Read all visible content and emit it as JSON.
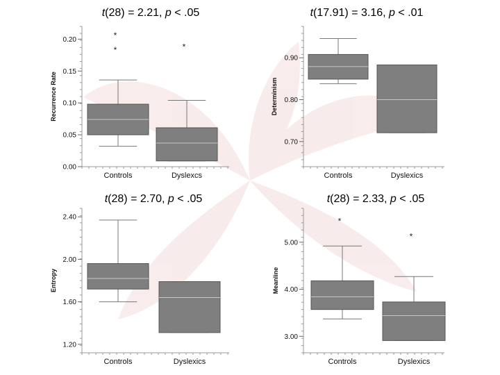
{
  "chart_data": [
    {
      "type": "boxplot",
      "title": {
        "t": "t",
        "rest1": "(28) = 2.21, ",
        "p": "p",
        "rest2": " < .05"
      },
      "ylabel": "Recurrence Rate",
      "ylim": [
        0.0,
        0.22
      ],
      "yticks": [
        "0.00",
        "0.05",
        "0.10",
        "0.15",
        "0.20"
      ],
      "ytick_values": [
        0.0,
        0.05,
        0.1,
        0.15,
        0.2
      ],
      "categories": [
        "Controls",
        "Dyslexcs"
      ],
      "boxes": [
        {
          "min": 0.032,
          "q1": 0.05,
          "median": 0.074,
          "q3": 0.098,
          "max": 0.136,
          "outliers": [
            0.185,
            0.208
          ]
        },
        {
          "min": 0.009,
          "q1": 0.009,
          "median": 0.037,
          "q3": 0.061,
          "max": 0.104,
          "outliers": [
            0.19
          ]
        }
      ]
    },
    {
      "type": "boxplot",
      "title": {
        "t": "t",
        "rest1": "(17.91) = 3.16, ",
        "p": "p",
        "rest2": " < .01"
      },
      "ylabel": "Determinism",
      "ylim": [
        0.64,
        0.975
      ],
      "yticks": [
        "0.70",
        "0.80",
        "0.90"
      ],
      "ytick_values": [
        0.7,
        0.8,
        0.9
      ],
      "categories": [
        "Controls",
        "Dyslexics"
      ],
      "boxes": [
        {
          "min": 0.838,
          "q1": 0.849,
          "median": 0.879,
          "q3": 0.908,
          "max": 0.946,
          "outliers": []
        },
        {
          "min": 0.721,
          "q1": 0.721,
          "median": 0.8,
          "q3": 0.883,
          "max": 0.883,
          "outliers": []
        }
      ]
    },
    {
      "type": "boxplot",
      "title": {
        "t": "t",
        "rest1": "(28) = 2.70, ",
        "p": "p",
        "rest2": " < .05"
      },
      "ylabel": "Entropy",
      "ylim": [
        1.12,
        2.48
      ],
      "yticks": [
        "1.20",
        "1.60",
        "2.00",
        "2.40"
      ],
      "ytick_values": [
        1.2,
        1.6,
        2.0,
        2.4
      ],
      "categories": [
        "Controls",
        "Dyslexics"
      ],
      "boxes": [
        {
          "min": 1.6,
          "q1": 1.72,
          "median": 1.82,
          "q3": 1.96,
          "max": 2.37,
          "outliers": []
        },
        {
          "min": 1.31,
          "q1": 1.31,
          "median": 1.64,
          "q3": 1.79,
          "max": 1.79,
          "outliers": []
        }
      ]
    },
    {
      "type": "boxplot",
      "title": {
        "t": "t",
        "rest1": "(28) = 2.33, ",
        "p": "p",
        "rest2": " < .05"
      },
      "ylabel": "Meanline",
      "ylim": [
        2.65,
        5.72
      ],
      "yticks": [
        "3.00",
        "4.00",
        "5.00"
      ],
      "ytick_values": [
        3.0,
        4.0,
        5.0
      ],
      "categories": [
        "Controls",
        "Dyslexics"
      ],
      "boxes": [
        {
          "min": 3.37,
          "q1": 3.57,
          "median": 3.84,
          "q3": 4.18,
          "max": 4.92,
          "outliers": [
            5.48
          ]
        },
        {
          "min": 2.91,
          "q1": 2.91,
          "median": 3.44,
          "q3": 3.73,
          "max": 4.27,
          "outliers": [
            5.15
          ]
        }
      ]
    }
  ],
  "colors": {
    "box_fill": "#7f7f7f",
    "box_stroke": "#555555",
    "median": "#c8c8c8",
    "axis": "#9a9a9a",
    "watermark": "#f3dcdc"
  },
  "outlier_marker": "*"
}
